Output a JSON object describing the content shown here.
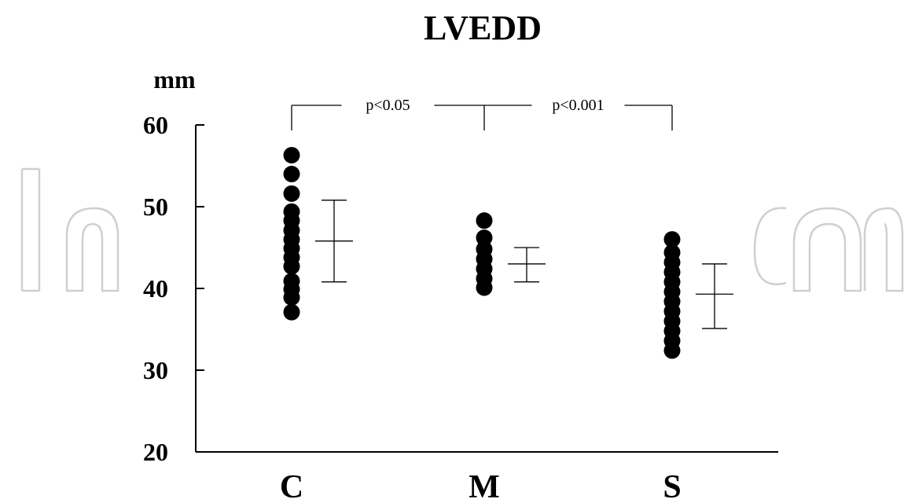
{
  "chart_data": {
    "type": "scatter",
    "title": "LVEDD",
    "ylabel": "mm",
    "ylim": [
      20,
      60
    ],
    "yticks": [
      20,
      30,
      40,
      50,
      60
    ],
    "categories": [
      "C",
      "M",
      "S"
    ],
    "groups": [
      {
        "name": "C",
        "values": [
          56.3,
          54,
          51.6,
          49.4,
          48.3,
          47.1,
          46,
          44.9,
          43.8,
          42.7,
          40.9,
          39.9,
          38.9,
          37.1
        ],
        "mean": 45.8,
        "upper": 50.8,
        "lower": 40.8
      },
      {
        "name": "M",
        "values": [
          48.3,
          46.2,
          44.8,
          43.6,
          42.4,
          41.2,
          40.1
        ],
        "mean": 43.0,
        "upper": 45.0,
        "lower": 40.8
      },
      {
        "name": "S",
        "values": [
          46,
          44.4,
          43.2,
          42,
          40.8,
          39.6,
          38.4,
          37.2,
          36,
          34.8,
          33.6,
          32.4
        ],
        "mean": 39.3,
        "upper": 43.0,
        "lower": 35.1
      }
    ],
    "comparisons": [
      {
        "from": "C",
        "to": "M",
        "label": "p<0.05"
      },
      {
        "from": "M",
        "to": "S",
        "label": "p<0.001"
      }
    ],
    "grid": false,
    "legend": "none"
  },
  "colors": {
    "points": "#000000",
    "axis": "#000000",
    "watermark": "#c8c8c8"
  }
}
